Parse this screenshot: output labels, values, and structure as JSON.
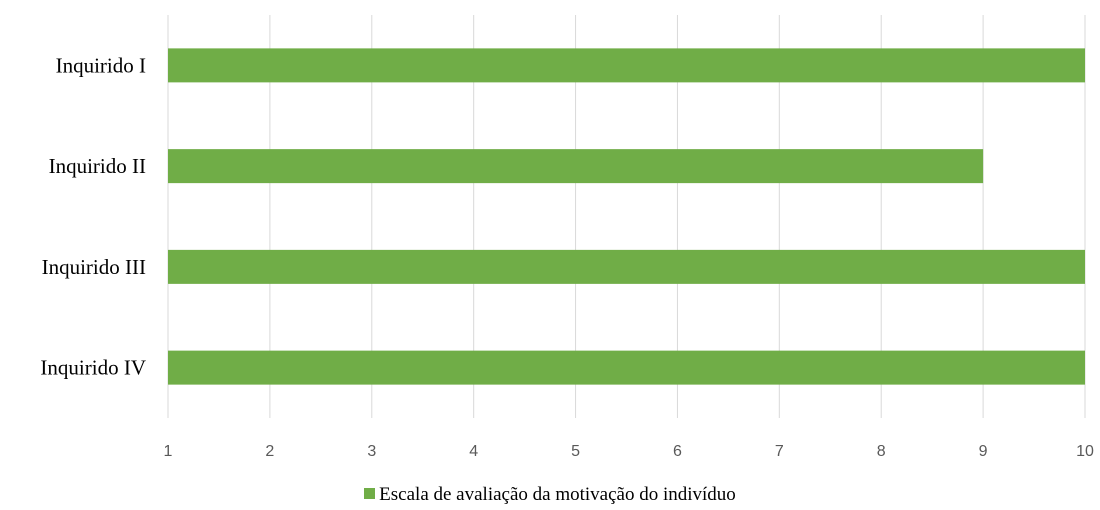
{
  "chart_data": {
    "type": "bar",
    "orientation": "horizontal",
    "categories": [
      "Inquirido I",
      "Inquirido II",
      "Inquirido III",
      "Inquirido IV"
    ],
    "series": [
      {
        "name": "Escala de avaliação da motivação do indivíduo",
        "values": [
          10,
          9,
          10,
          10
        ],
        "color": "#70ad47"
      }
    ],
    "xlim": [
      1,
      10
    ],
    "xticks": [
      "1",
      "2",
      "3",
      "4",
      "5",
      "6",
      "7",
      "8",
      "9",
      "10"
    ],
    "grid": true,
    "gridColor": "#d9d9d9",
    "legend": "bottom",
    "title": "",
    "xlabel": "",
    "ylabel": ""
  }
}
